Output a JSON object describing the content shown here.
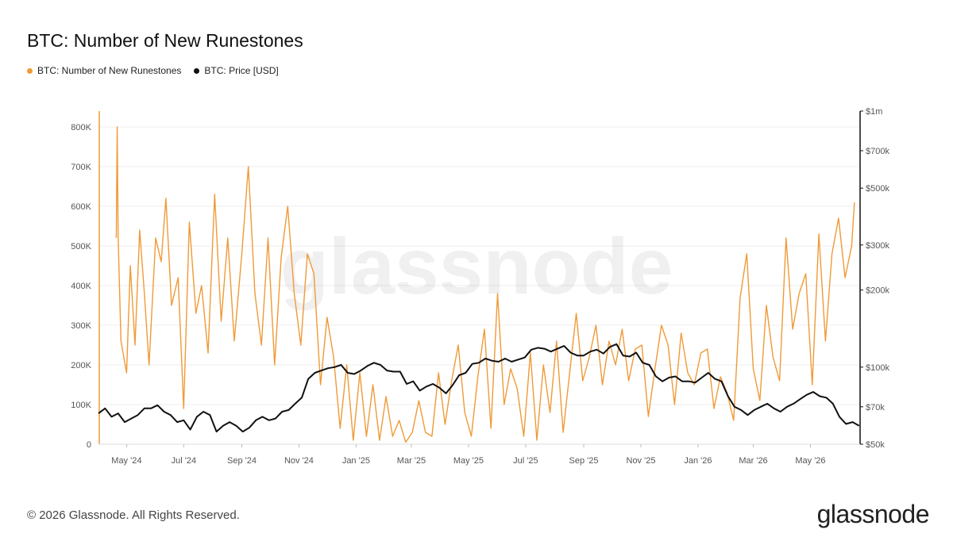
{
  "chart_data": {
    "type": "line",
    "title": "BTC: Number of New Runestones",
    "legend": [
      {
        "label": "BTC: Number of New Runestones",
        "color": "#f09a37"
      },
      {
        "label": "BTC: Price [USD]",
        "color": "#111111"
      }
    ],
    "grid": true,
    "legend_position": "top-left",
    "x_ticks": [
      "May '24",
      "Jul '24",
      "Sep '24",
      "Nov '24",
      "Jan '25",
      "Mar '25",
      "May '25",
      "Jul '25",
      "Sep '25",
      "Nov '25",
      "Jan '26",
      "Mar '26",
      "May '26"
    ],
    "x_range": [
      "2024-04-01",
      "2026-06-23"
    ],
    "y_left": {
      "range": [
        0,
        840000
      ],
      "ticks": [
        0,
        100000,
        200000,
        300000,
        400000,
        500000,
        600000,
        700000,
        800000
      ],
      "tick_labels": [
        "0",
        "100K",
        "200K",
        "300K",
        "400K",
        "500K",
        "600K",
        "700K",
        "800K"
      ]
    },
    "y_right": {
      "scale": "log",
      "range": [
        50000,
        1000000
      ],
      "ticks": [
        50000,
        70000,
        100000,
        200000,
        300000,
        500000,
        700000,
        1000000
      ],
      "tick_labels": [
        "$50k",
        "$70k",
        "$100k",
        "$200k",
        "$300k",
        "$500k",
        "$700k",
        "$1m"
      ]
    },
    "series": [
      {
        "name": "BTC: Number of New Runestones",
        "axis": "left",
        "color": "#f09a37",
        "x": [
          "2024-04-20",
          "2024-04-21",
          "2024-04-22",
          "2024-04-25",
          "2024-05-01",
          "2024-05-05",
          "2024-05-10",
          "2024-05-15",
          "2024-05-20",
          "2024-05-25",
          "2024-06-01",
          "2024-06-07",
          "2024-06-12",
          "2024-06-18",
          "2024-06-25",
          "2024-07-01",
          "2024-07-07",
          "2024-07-14",
          "2024-07-20",
          "2024-07-27",
          "2024-08-03",
          "2024-08-10",
          "2024-08-17",
          "2024-08-24",
          "2024-09-01",
          "2024-09-08",
          "2024-09-15",
          "2024-09-22",
          "2024-09-29",
          "2024-10-06",
          "2024-10-13",
          "2024-10-20",
          "2024-10-27",
          "2024-11-03",
          "2024-11-10",
          "2024-11-17",
          "2024-11-24",
          "2024-12-01",
          "2024-12-08",
          "2024-12-15",
          "2024-12-22",
          "2024-12-29",
          "2025-01-05",
          "2025-01-12",
          "2025-01-19",
          "2025-01-26",
          "2025-02-02",
          "2025-02-09",
          "2025-02-16",
          "2025-02-23",
          "2025-03-02",
          "2025-03-09",
          "2025-03-16",
          "2025-03-23",
          "2025-03-30",
          "2025-04-06",
          "2025-04-13",
          "2025-04-20",
          "2025-04-27",
          "2025-05-04",
          "2025-05-11",
          "2025-05-18",
          "2025-05-25",
          "2025-06-01",
          "2025-06-08",
          "2025-06-15",
          "2025-06-22",
          "2025-06-29",
          "2025-07-06",
          "2025-07-13",
          "2025-07-20",
          "2025-07-27",
          "2025-08-03",
          "2025-08-10",
          "2025-08-17",
          "2025-08-24",
          "2025-08-31",
          "2025-09-07",
          "2025-09-14",
          "2025-09-21",
          "2025-09-28",
          "2025-10-05",
          "2025-10-12",
          "2025-10-19",
          "2025-10-26",
          "2025-11-02",
          "2025-11-09",
          "2025-11-16",
          "2025-11-23",
          "2025-11-30",
          "2025-12-07",
          "2025-12-14",
          "2025-12-21",
          "2025-12-28",
          "2026-01-04",
          "2026-01-11",
          "2026-01-18",
          "2026-01-25",
          "2026-02-01",
          "2026-02-08",
          "2026-02-15",
          "2026-02-22",
          "2026-03-01",
          "2026-03-08",
          "2026-03-15",
          "2026-03-22",
          "2026-03-29",
          "2026-04-05",
          "2026-04-12",
          "2026-04-19",
          "2026-04-26",
          "2026-05-03",
          "2026-05-10",
          "2026-05-17",
          "2026-05-24",
          "2026-05-31",
          "2026-06-07",
          "2026-06-14",
          "2026-06-17"
        ],
        "values": [
          520000,
          800000,
          520000,
          260000,
          180000,
          450000,
          250000,
          540000,
          380000,
          200000,
          520000,
          460000,
          620000,
          350000,
          420000,
          90000,
          560000,
          330000,
          400000,
          230000,
          630000,
          310000,
          520000,
          260000,
          480000,
          700000,
          380000,
          250000,
          520000,
          200000,
          470000,
          600000,
          380000,
          250000,
          480000,
          430000,
          150000,
          320000,
          220000,
          40000,
          200000,
          10000,
          180000,
          20000,
          150000,
          10000,
          120000,
          20000,
          60000,
          5000,
          30000,
          110000,
          30000,
          20000,
          180000,
          50000,
          160000,
          250000,
          80000,
          20000,
          170000,
          290000,
          40000,
          380000,
          100000,
          190000,
          140000,
          20000,
          230000,
          10000,
          200000,
          80000,
          260000,
          30000,
          180000,
          330000,
          160000,
          220000,
          300000,
          150000,
          260000,
          200000,
          290000,
          160000,
          240000,
          250000,
          70000,
          190000,
          300000,
          250000,
          100000,
          280000,
          180000,
          150000,
          230000,
          240000,
          90000,
          170000,
          130000,
          60000,
          370000,
          480000,
          190000,
          110000,
          350000,
          220000,
          160000,
          520000,
          290000,
          380000,
          430000,
          150000,
          530000,
          260000,
          480000,
          570000,
          420000,
          500000,
          610000
        ]
      },
      {
        "name": "BTC: Price [USD]",
        "axis": "right",
        "color": "#111111",
        "x": [
          "2024-04-01",
          "2024-04-08",
          "2024-04-15",
          "2024-04-22",
          "2024-04-29",
          "2024-05-06",
          "2024-05-13",
          "2024-05-20",
          "2024-05-27",
          "2024-06-03",
          "2024-06-10",
          "2024-06-17",
          "2024-06-24",
          "2024-07-01",
          "2024-07-08",
          "2024-07-15",
          "2024-07-22",
          "2024-07-29",
          "2024-08-05",
          "2024-08-12",
          "2024-08-19",
          "2024-08-26",
          "2024-09-02",
          "2024-09-09",
          "2024-09-16",
          "2024-09-23",
          "2024-09-30",
          "2024-10-07",
          "2024-10-14",
          "2024-10-21",
          "2024-10-28",
          "2024-11-04",
          "2024-11-11",
          "2024-11-18",
          "2024-11-25",
          "2024-12-02",
          "2024-12-09",
          "2024-12-16",
          "2024-12-23",
          "2024-12-30",
          "2025-01-06",
          "2025-01-13",
          "2025-01-20",
          "2025-01-27",
          "2025-02-03",
          "2025-02-10",
          "2025-02-17",
          "2025-02-24",
          "2025-03-03",
          "2025-03-10",
          "2025-03-17",
          "2025-03-24",
          "2025-03-31",
          "2025-04-07",
          "2025-04-14",
          "2025-04-21",
          "2025-04-28",
          "2025-05-05",
          "2025-05-12",
          "2025-05-19",
          "2025-05-26",
          "2025-06-02",
          "2025-06-09",
          "2025-06-16",
          "2025-06-23",
          "2025-06-30",
          "2025-07-07",
          "2025-07-14",
          "2025-07-21",
          "2025-07-28",
          "2025-08-04",
          "2025-08-11",
          "2025-08-18",
          "2025-08-25",
          "2025-09-01",
          "2025-09-08",
          "2025-09-15",
          "2025-09-22",
          "2025-09-29",
          "2025-10-06",
          "2025-10-13",
          "2025-10-20",
          "2025-10-27",
          "2025-11-03",
          "2025-11-10",
          "2025-11-17",
          "2025-11-24",
          "2025-12-01",
          "2025-12-08",
          "2025-12-15",
          "2025-12-22",
          "2025-12-29",
          "2026-01-05",
          "2026-01-12",
          "2026-01-19",
          "2026-01-26",
          "2026-02-02",
          "2026-02-09",
          "2026-02-16",
          "2026-02-23",
          "2026-03-02",
          "2026-03-09",
          "2026-03-16",
          "2026-03-23",
          "2026-03-30",
          "2026-04-06",
          "2026-04-13",
          "2026-04-20",
          "2026-04-27",
          "2026-05-04",
          "2026-05-11",
          "2026-05-18",
          "2026-05-25",
          "2026-06-01",
          "2026-06-08",
          "2026-06-15",
          "2026-06-22"
        ],
        "values": [
          66000,
          69000,
          64000,
          66000,
          61000,
          63000,
          65000,
          69000,
          69000,
          71000,
          67000,
          65000,
          61000,
          62000,
          57000,
          64000,
          67000,
          65000,
          56000,
          59000,
          61000,
          59000,
          56000,
          58000,
          62000,
          64000,
          62000,
          63000,
          67000,
          68000,
          72000,
          76000,
          90000,
          95000,
          97000,
          99000,
          100000,
          102000,
          95000,
          94000,
          97000,
          101000,
          104000,
          102000,
          97000,
          96000,
          96000,
          86000,
          88000,
          81000,
          84000,
          86000,
          83000,
          79000,
          85000,
          93000,
          95000,
          103000,
          104000,
          108000,
          106000,
          105000,
          108000,
          105000,
          107000,
          109000,
          117000,
          119000,
          118000,
          115000,
          118000,
          121000,
          114000,
          111000,
          111000,
          115000,
          117000,
          113000,
          120000,
          123000,
          111000,
          110000,
          114000,
          104000,
          102000,
          92000,
          88000,
          91000,
          92000,
          88000,
          88000,
          87000,
          91000,
          95000,
          90000,
          88000,
          77000,
          70000,
          68000,
          65000,
          68000,
          70000,
          72000,
          69000,
          67000,
          70000,
          72000,
          75000,
          78000,
          80000,
          77000,
          76000,
          72000,
          64000,
          60000,
          61000,
          59000
        ]
      }
    ]
  },
  "watermark": "glassnode",
  "footer": {
    "copyright": "© 2026 Glassnode. All Rights Reserved.",
    "brand": "glassnode"
  }
}
